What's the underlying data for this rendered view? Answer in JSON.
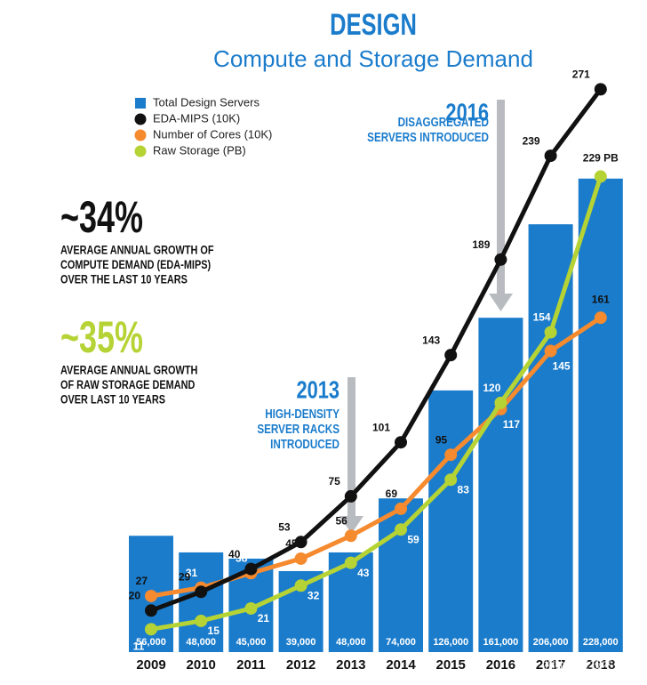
{
  "chart_data": {
    "type": "bar-line",
    "title": "DESIGN",
    "subtitle": "Compute and Storage Demand",
    "categories": [
      "2009",
      "2010",
      "2011",
      "2012",
      "2013",
      "2014",
      "2015",
      "2016",
      "2017",
      "2018"
    ],
    "bars": {
      "name": "Total Design Servers",
      "color": "#1b7ccc",
      "axis": "y2",
      "values": [
        56000,
        48000,
        45000,
        39000,
        48000,
        74000,
        126000,
        161000,
        206000,
        228000
      ],
      "value_labels": [
        "56,000",
        "48,000",
        "45,000",
        "39,000",
        "48,000",
        "74,000",
        "126,000",
        "161,000",
        "206,000",
        "228,000"
      ]
    },
    "series": [
      {
        "name": "EDA-MIPS (10K)",
        "color": "#111111",
        "values": [
          20,
          29,
          40,
          53,
          75,
          101,
          143,
          189,
          239,
          271
        ]
      },
      {
        "name": "Number of Cores (10K)",
        "color": "#f58a2e",
        "values": [
          27,
          31,
          38,
          45,
          56,
          69,
          95,
          117,
          145,
          161
        ]
      },
      {
        "name": "Raw Storage (PB)",
        "color": "#b5d334",
        "values": [
          11,
          15,
          21,
          32,
          43,
          59,
          83,
          120,
          154,
          229
        ],
        "value_labels": [
          "11",
          "15",
          "21",
          "32",
          "43",
          "59",
          "83",
          "120",
          "154",
          "229 PB"
        ]
      }
    ],
    "ylim": [
      0,
      314
    ],
    "y2lim": [
      0,
      314000
    ],
    "annotations": {
      "compute_pct": "~34%",
      "compute_text": [
        "AVERAGE ANNUAL GROWTH OF",
        "COMPUTE DEMAND (EDA-MIPS)",
        "OVER THE LAST 10 YEARS"
      ],
      "storage_pct": "~35%",
      "storage_text": [
        "AVERAGE ANNUAL GROWTH",
        "OF RAW STORAGE DEMAND",
        "OVER LAST 10 YEARS"
      ],
      "callout_2016": [
        "2016",
        "DISAGGREGATED",
        "SERVERS INTRODUCED"
      ],
      "callout_2013": [
        "2013",
        "HIGH-DENSITY",
        "SERVER RACKS",
        "INTRODUCED"
      ]
    },
    "watermark": "稀土掘金技术社区"
  }
}
